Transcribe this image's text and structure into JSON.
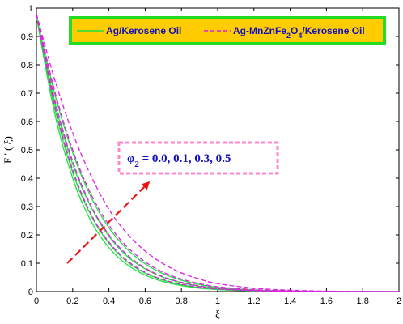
{
  "chart_data": {
    "type": "line",
    "xlabel": "ξ",
    "ylabel": "F ' ( ξ)",
    "xlim": [
      0,
      2
    ],
    "ylim": [
      0,
      1
    ],
    "xticks": [
      "0",
      "0.2",
      "0.4",
      "0.6",
      "0.8",
      "1",
      "1.2",
      "1.4",
      "1.6",
      "1.8",
      "2"
    ],
    "yticks": [
      "0",
      "0.1",
      "0.2",
      "0.3",
      "0.4",
      "0.5",
      "0.6",
      "0.7",
      "0.8",
      "0.9",
      "1"
    ],
    "grid": false,
    "legend": {
      "placement": "top",
      "entries": [
        {
          "text": "Ag/Kerosene Oil",
          "style": "solid",
          "color": "#22dd44"
        },
        {
          "text": "Ag-MnZnFe₂O₄/Kerosene Oil",
          "style": "dashed",
          "color": "#dd22dd",
          "text_parts": [
            "Ag-MnZnFe",
            "2",
            "O",
            "4",
            "/Kerosene Oil"
          ]
        }
      ]
    },
    "annotation": {
      "text_parts": [
        "φ",
        "2",
        " = 0.0, 0.1, 0.3, 0.5"
      ],
      "arrow_from": [
        0.17,
        0.1
      ],
      "arrow_to": [
        0.62,
        0.385
      ],
      "arrow_color": "#ee1111"
    },
    "series": [
      {
        "style": "solid",
        "color": "#22dd44",
        "x": [
          0,
          0.1,
          0.2,
          0.3,
          0.4,
          0.5,
          0.6,
          0.7,
          0.8,
          0.9,
          1.0,
          1.2,
          1.4,
          1.6,
          1.8,
          2.0
        ],
        "y": [
          0.97,
          0.63,
          0.4,
          0.25,
          0.155,
          0.095,
          0.058,
          0.035,
          0.021,
          0.012,
          0.007,
          0.002,
          0.0005,
          0.0001,
          0,
          0
        ]
      },
      {
        "style": "solid",
        "color": "#22dd44",
        "x": [
          0,
          0.1,
          0.2,
          0.3,
          0.4,
          0.5,
          0.6,
          0.7,
          0.8,
          0.9,
          1.0,
          1.2,
          1.4,
          1.6,
          1.8,
          2.0
        ],
        "y": [
          0.97,
          0.65,
          0.42,
          0.27,
          0.17,
          0.105,
          0.065,
          0.04,
          0.024,
          0.014,
          0.008,
          0.003,
          0.001,
          0.0002,
          0,
          0
        ]
      },
      {
        "style": "solid",
        "color": "#22dd44",
        "x": [
          0,
          0.1,
          0.2,
          0.3,
          0.4,
          0.5,
          0.6,
          0.7,
          0.8,
          0.9,
          1.0,
          1.2,
          1.4,
          1.6,
          1.8,
          2.0
        ],
        "y": [
          0.97,
          0.67,
          0.45,
          0.3,
          0.195,
          0.125,
          0.08,
          0.05,
          0.031,
          0.019,
          0.011,
          0.004,
          0.0015,
          0.0004,
          0.0001,
          0
        ]
      },
      {
        "style": "solid",
        "color": "#22dd44",
        "x": [
          0,
          0.1,
          0.2,
          0.3,
          0.4,
          0.5,
          0.6,
          0.7,
          0.8,
          0.9,
          1.0,
          1.2,
          1.4,
          1.6,
          1.8,
          2.0
        ],
        "y": [
          0.97,
          0.7,
          0.49,
          0.335,
          0.225,
          0.15,
          0.098,
          0.063,
          0.04,
          0.025,
          0.015,
          0.006,
          0.002,
          0.0006,
          0.0002,
          0
        ]
      },
      {
        "style": "dashed",
        "color": "#dd22dd",
        "x": [
          0,
          0.1,
          0.2,
          0.3,
          0.4,
          0.5,
          0.6,
          0.7,
          0.8,
          0.9,
          1.0,
          1.2,
          1.4,
          1.6,
          1.8,
          2.0
        ],
        "y": [
          0.98,
          0.66,
          0.43,
          0.275,
          0.175,
          0.11,
          0.068,
          0.042,
          0.026,
          0.016,
          0.009,
          0.003,
          0.001,
          0.0002,
          0,
          0
        ]
      },
      {
        "style": "dashed",
        "color": "#dd22dd",
        "x": [
          0,
          0.1,
          0.2,
          0.3,
          0.4,
          0.5,
          0.6,
          0.7,
          0.8,
          0.9,
          1.0,
          1.2,
          1.4,
          1.6,
          1.8,
          2.0
        ],
        "y": [
          0.98,
          0.68,
          0.46,
          0.305,
          0.2,
          0.13,
          0.083,
          0.052,
          0.033,
          0.02,
          0.012,
          0.004,
          0.0015,
          0.0004,
          0.0001,
          0
        ]
      },
      {
        "style": "dashed",
        "color": "#dd22dd",
        "x": [
          0,
          0.1,
          0.2,
          0.3,
          0.4,
          0.5,
          0.6,
          0.7,
          0.8,
          0.9,
          1.0,
          1.2,
          1.4,
          1.6,
          1.8,
          2.0
        ],
        "y": [
          0.98,
          0.71,
          0.5,
          0.345,
          0.235,
          0.158,
          0.105,
          0.068,
          0.044,
          0.028,
          0.017,
          0.007,
          0.0025,
          0.0008,
          0.0002,
          0
        ]
      },
      {
        "style": "dashed",
        "color": "#dd22dd",
        "x": [
          0,
          0.1,
          0.2,
          0.3,
          0.4,
          0.5,
          0.6,
          0.7,
          0.8,
          0.9,
          1.0,
          1.2,
          1.4,
          1.6,
          1.8,
          2.0
        ],
        "y": [
          0.98,
          0.75,
          0.56,
          0.41,
          0.29,
          0.205,
          0.143,
          0.098,
          0.066,
          0.044,
          0.028,
          0.012,
          0.005,
          0.0015,
          0.0004,
          0
        ]
      }
    ]
  }
}
